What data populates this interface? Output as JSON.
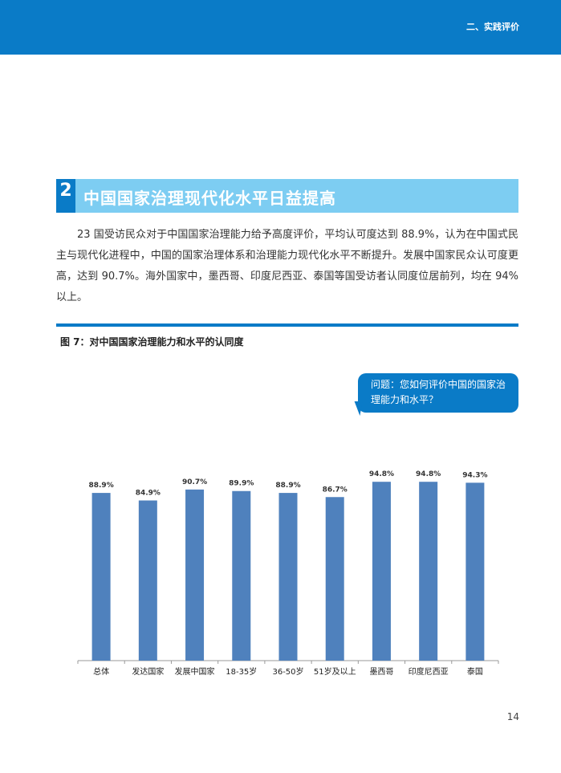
{
  "header": {
    "section_label": "二、实践评价"
  },
  "section": {
    "number": "2",
    "title": "中国国家治理现代化水平日益提高"
  },
  "body": {
    "paragraph": "23 国受访民众对于中国国家治理能力给予高度评价，平均认可度达到 88.9%，认为在中国式民主与现代化进程中，中国的国家治理体系和治理能力现代化水平不断提升。发展中国家民众认可度更高，达到 90.7%。海外国家中，墨西哥、印度尼西亚、泰国等国受访者认同度位居前列，均在 94% 以上。"
  },
  "figure": {
    "caption": "图 7：对中国国家治理能力和水平的认同度",
    "question": "问题：您如何评价中国的国家治理能力和水平？"
  },
  "chart_data": {
    "type": "bar",
    "categories": [
      "总体",
      "发达国家",
      "发展中国家",
      "18-35岁",
      "36-50岁",
      "51岁及以上",
      "墨西哥",
      "印度尼西亚",
      "泰国"
    ],
    "values": [
      88.9,
      84.9,
      90.7,
      89.9,
      88.9,
      86.7,
      94.8,
      94.8,
      94.3
    ],
    "value_labels": [
      "88.9%",
      "84.9%",
      "90.7%",
      "89.9%",
      "88.9%",
      "86.7%",
      "94.8%",
      "94.8%",
      "94.3%"
    ],
    "title": "",
    "xlabel": "",
    "ylabel": "",
    "ylim": [
      0,
      100
    ],
    "grid": false,
    "bar_color": "#4f81bd"
  },
  "footer": {
    "page_number": "14"
  }
}
